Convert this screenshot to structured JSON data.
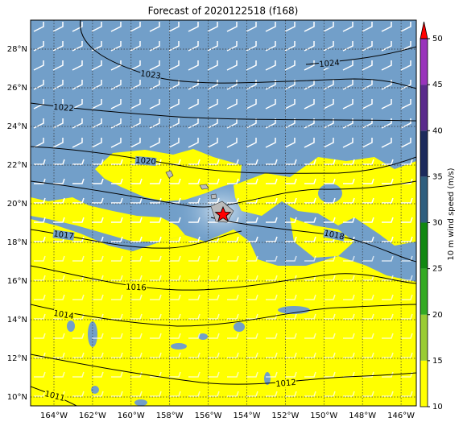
{
  "title": "Forecast of 2020122518 (f168)",
  "map": {
    "lat_labels": [
      "28°N",
      "26°N",
      "24°N",
      "22°N",
      "20°N",
      "18°N",
      "16°N",
      "14°N",
      "12°N",
      "10°N"
    ],
    "lon_labels": [
      "164°W",
      "162°W",
      "160°W",
      "158°W",
      "156°W",
      "154°W",
      "152°W",
      "150°W",
      "148°W",
      "146°W"
    ],
    "contour_labels": [
      "1024",
      "1023",
      "1022",
      "1020",
      "1017",
      "1018",
      "1016",
      "1014",
      "1012",
      "1011"
    ]
  },
  "colorbar": {
    "label": "10 m wind speed (m/s)",
    "ticks": [
      10,
      15,
      20,
      25,
      30,
      35,
      40,
      45,
      50
    ]
  }
}
